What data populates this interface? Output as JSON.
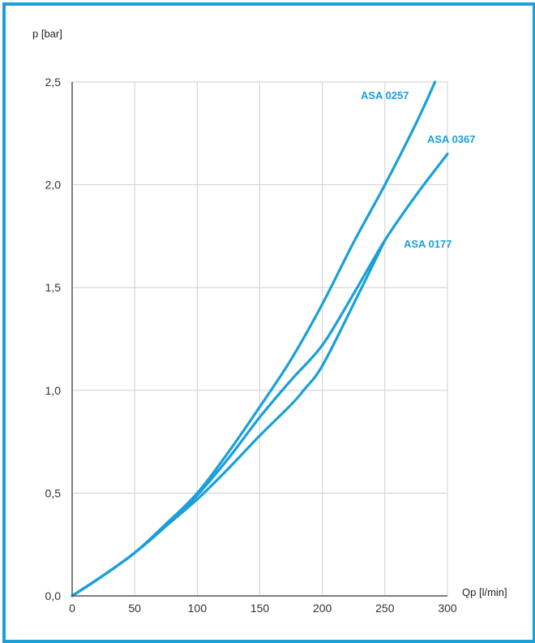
{
  "chart_data": {
    "type": "line",
    "title": "",
    "xlabel": "Qp [l/min]",
    "ylabel": "p [bar]",
    "xlim": [
      0,
      300
    ],
    "ylim": [
      0.0,
      2.5
    ],
    "xticks": [
      {
        "value": 0,
        "label": "0"
      },
      {
        "value": 50,
        "label": "50"
      },
      {
        "value": 100,
        "label": "100"
      },
      {
        "value": 150,
        "label": "150"
      },
      {
        "value": 200,
        "label": "200"
      },
      {
        "value": 250,
        "label": "250"
      },
      {
        "value": 300,
        "label": "300"
      }
    ],
    "yticks": [
      {
        "value": 0.0,
        "label": "0,0"
      },
      {
        "value": 0.5,
        "label": "0,5"
      },
      {
        "value": 1.0,
        "label": "1,0"
      },
      {
        "value": 1.5,
        "label": "1,5"
      },
      {
        "value": 2.0,
        "label": "2,0"
      },
      {
        "value": 2.5,
        "label": "2,5"
      }
    ],
    "grid": true,
    "line_color": "#1a9fd9",
    "frame_color": "#1a9fd9",
    "series": [
      {
        "name": "ASA 0257",
        "points": [
          [
            0,
            0.0
          ],
          [
            25,
            0.1
          ],
          [
            50,
            0.21
          ],
          [
            75,
            0.35
          ],
          [
            100,
            0.5
          ],
          [
            125,
            0.7
          ],
          [
            150,
            0.92
          ],
          [
            175,
            1.15
          ],
          [
            200,
            1.42
          ],
          [
            225,
            1.72
          ],
          [
            250,
            2.0
          ],
          [
            275,
            2.3
          ],
          [
            290,
            2.5
          ]
        ]
      },
      {
        "name": "ASA 0367",
        "points": [
          [
            0,
            0.0
          ],
          [
            25,
            0.1
          ],
          [
            50,
            0.21
          ],
          [
            75,
            0.34
          ],
          [
            100,
            0.49
          ],
          [
            125,
            0.67
          ],
          [
            150,
            0.87
          ],
          [
            175,
            1.05
          ],
          [
            200,
            1.22
          ],
          [
            225,
            1.47
          ],
          [
            250,
            1.73
          ],
          [
            275,
            1.95
          ],
          [
            300,
            2.15
          ]
        ]
      },
      {
        "name": "ASA 0177",
        "points": [
          [
            0,
            0.0
          ],
          [
            25,
            0.1
          ],
          [
            50,
            0.21
          ],
          [
            75,
            0.34
          ],
          [
            100,
            0.47
          ],
          [
            125,
            0.62
          ],
          [
            150,
            0.78
          ],
          [
            175,
            0.93
          ],
          [
            185,
            1.0
          ],
          [
            200,
            1.12
          ],
          [
            225,
            1.42
          ],
          [
            250,
            1.73
          ]
        ]
      }
    ]
  }
}
